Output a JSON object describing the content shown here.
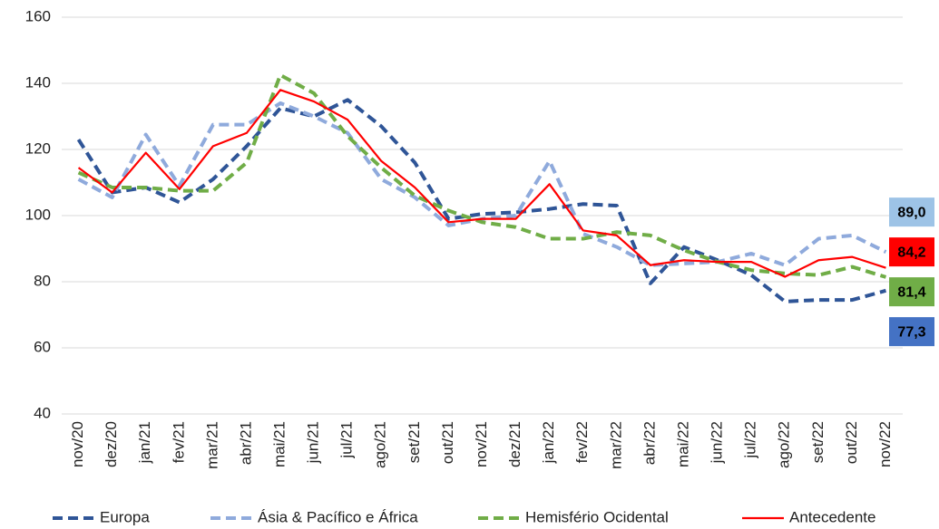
{
  "chart_data": {
    "type": "line",
    "categories": [
      "nov/20",
      "dez/20",
      "jan/21",
      "fev/21",
      "mar/21",
      "abr/21",
      "mai/21",
      "jun/21",
      "jul/21",
      "ago/21",
      "set/21",
      "out/21",
      "nov/21",
      "dez/21",
      "jan/22",
      "fev/22",
      "mar/22",
      "abr/22",
      "mai/22",
      "jun/22",
      "jul/22",
      "ago/22",
      "set/22",
      "out/22",
      "nov/22"
    ],
    "ylim": [
      40,
      160
    ],
    "yticks": [
      40,
      60,
      80,
      100,
      120,
      140,
      160
    ],
    "grid": true,
    "legend": "bottom",
    "series": [
      {
        "name": "Europa",
        "color": "#2f5597",
        "label_color": "#4472c4",
        "dashed": true,
        "values": [
          123,
          107,
          108.5,
          104,
          111,
          121,
          132.5,
          130,
          135,
          127,
          116,
          99,
          100.5,
          101,
          102,
          103.5,
          103,
          79.5,
          90.5,
          86.5,
          82,
          74,
          74.5,
          74.5,
          77.3
        ],
        "value_labels": [
          null,
          null,
          null,
          null,
          null,
          null,
          null,
          null,
          null,
          null,
          null,
          null,
          null,
          null,
          null,
          null,
          null,
          null,
          null,
          null,
          null,
          null,
          null,
          null,
          "77,3"
        ]
      },
      {
        "name": "Ásia & Pacífico e África",
        "color": "#8faadc",
        "label_color": "#9dc3e6",
        "dashed": true,
        "values": [
          111,
          105.5,
          124.5,
          109,
          127.5,
          127.5,
          134,
          130,
          125,
          111,
          105.5,
          97,
          99,
          100,
          116.5,
          94.5,
          90.5,
          85,
          85.5,
          86,
          88.5,
          85,
          93,
          94,
          89.0
        ],
        "value_labels": [
          null,
          null,
          null,
          null,
          null,
          null,
          null,
          null,
          null,
          null,
          null,
          null,
          null,
          null,
          null,
          null,
          null,
          null,
          null,
          null,
          null,
          null,
          null,
          null,
          "89,0"
        ]
      },
      {
        "name": "Hemisfério Ocidental",
        "color": "#70ad47",
        "label_color": "#70ad47",
        "dashed": true,
        "values": [
          113,
          108.5,
          108.5,
          107.5,
          107.5,
          116,
          142.5,
          137,
          124,
          114.5,
          106,
          101.5,
          98,
          96.5,
          93,
          93,
          95,
          94,
          89.5,
          86,
          83.5,
          82.5,
          82,
          84.5,
          81.4
        ],
        "value_labels": [
          null,
          null,
          null,
          null,
          null,
          null,
          null,
          null,
          null,
          null,
          null,
          null,
          null,
          null,
          null,
          null,
          null,
          null,
          null,
          null,
          null,
          null,
          null,
          null,
          "81,4"
        ]
      },
      {
        "name": "Antecedente",
        "color": "#ff0000",
        "label_color": "#ff0000",
        "dashed": false,
        "values": [
          114.5,
          107,
          119,
          108,
          121,
          125,
          138,
          134.5,
          129,
          116.5,
          108.5,
          98,
          99,
          99,
          109.5,
          95.5,
          94,
          85,
          86.5,
          86,
          86,
          81.5,
          86.5,
          87.5,
          84.2
        ],
        "value_labels": [
          null,
          null,
          null,
          null,
          null,
          null,
          null,
          null,
          null,
          null,
          null,
          null,
          null,
          null,
          null,
          null,
          null,
          null,
          null,
          null,
          null,
          null,
          null,
          null,
          "84,2"
        ]
      }
    ]
  }
}
